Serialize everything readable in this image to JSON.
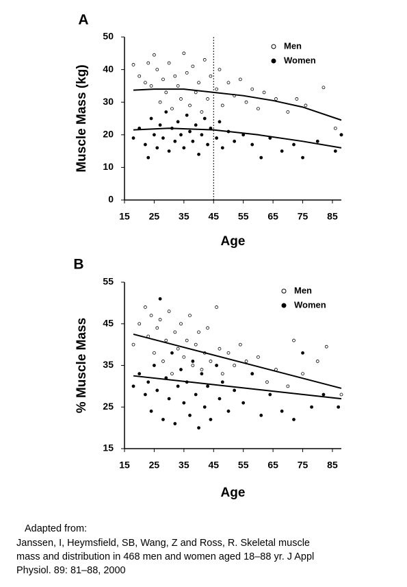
{
  "chart_data": [
    {
      "type": "scatter",
      "panel": "A",
      "xlabel": "Age",
      "ylabel": "Muscle Mass (kg)",
      "xlim": [
        15,
        88
      ],
      "ylim": [
        0,
        50
      ],
      "xticks": [
        15,
        25,
        35,
        45,
        55,
        65,
        75,
        85
      ],
      "yticks": [
        0,
        10,
        20,
        30,
        40,
        50
      ],
      "vline": 45,
      "series": [
        {
          "name": "Men",
          "marker": "open",
          "color": "#000000",
          "x": [
            18,
            20,
            22,
            23,
            24,
            25,
            26,
            27,
            28,
            29,
            30,
            31,
            32,
            33,
            34,
            35,
            36,
            37,
            38,
            39,
            40,
            41,
            42,
            43,
            44,
            46,
            47,
            48,
            50,
            52,
            54,
            56,
            58,
            60,
            62,
            66,
            70,
            73,
            76,
            82,
            86,
            88
          ],
          "values": [
            41.5,
            38,
            36,
            42,
            35,
            44.5,
            40,
            30,
            37,
            33,
            42,
            28,
            38,
            35,
            31,
            45,
            39,
            29,
            41,
            33,
            36,
            27,
            43,
            31,
            38,
            34,
            40,
            29,
            36,
            32,
            37,
            30,
            34,
            28,
            33,
            31,
            27,
            31,
            29,
            34.5,
            22,
            20
          ]
        },
        {
          "name": "Women",
          "marker": "filled",
          "color": "#000000",
          "x": [
            18,
            20,
            22,
            23,
            24,
            25,
            26,
            27,
            28,
            29,
            30,
            31,
            32,
            33,
            34,
            35,
            36,
            37,
            38,
            39,
            40,
            41,
            42,
            43,
            44,
            46,
            47,
            48,
            50,
            52,
            55,
            58,
            61,
            64,
            68,
            72,
            75,
            80,
            86,
            88
          ],
          "values": [
            19,
            22,
            17,
            13,
            25,
            20,
            16,
            23,
            19,
            27,
            15,
            22,
            18,
            24,
            20,
            16,
            26,
            21,
            18,
            23,
            14,
            20,
            25,
            17,
            22,
            19,
            24,
            16,
            21,
            18,
            20,
            17,
            13,
            19,
            15,
            17,
            13,
            18,
            15,
            20
          ]
        }
      ],
      "fits": [
        {
          "x": [
            18,
            25,
            35,
            45,
            55,
            65,
            75,
            88
          ],
          "values": [
            33.7,
            34,
            34,
            33,
            32,
            30.5,
            28.5,
            24.5
          ]
        },
        {
          "x": [
            18,
            30,
            45,
            60,
            75,
            88
          ],
          "values": [
            21.5,
            22,
            21.5,
            20,
            18,
            16
          ]
        }
      ]
    },
    {
      "type": "scatter",
      "panel": "B",
      "xlabel": "Age",
      "ylabel": "% Muscle Mass",
      "xlim": [
        15,
        88
      ],
      "ylim": [
        15,
        55
      ],
      "xticks": [
        15,
        25,
        35,
        45,
        55,
        65,
        75,
        85
      ],
      "yticks": [
        15,
        25,
        35,
        45,
        55
      ],
      "series": [
        {
          "name": "Men",
          "marker": "open",
          "color": "#000000",
          "x": [
            18,
            20,
            22,
            23,
            24,
            25,
            26,
            27,
            28,
            29,
            30,
            31,
            32,
            33,
            34,
            35,
            36,
            37,
            38,
            39,
            40,
            41,
            42,
            43,
            44,
            46,
            47,
            48,
            50,
            52,
            54,
            56,
            58,
            60,
            63,
            66,
            70,
            72,
            75,
            80,
            83,
            88
          ],
          "values": [
            40,
            45,
            49,
            42,
            47,
            38,
            44,
            46,
            36,
            41,
            48,
            33,
            43,
            39,
            45,
            37,
            41,
            47,
            35,
            40,
            43,
            34,
            38,
            44,
            36,
            49,
            39,
            33,
            38,
            35,
            40,
            36,
            33,
            37,
            31,
            34,
            30,
            41,
            33,
            36,
            39.5,
            28
          ]
        },
        {
          "name": "Women",
          "marker": "filled",
          "color": "#000000",
          "x": [
            18,
            20,
            22,
            23,
            24,
            25,
            26,
            27,
            28,
            29,
            30,
            31,
            32,
            33,
            34,
            35,
            36,
            37,
            38,
            39,
            40,
            41,
            42,
            43,
            44,
            46,
            47,
            48,
            50,
            52,
            55,
            58,
            61,
            64,
            68,
            72,
            75,
            78,
            82,
            87
          ],
          "values": [
            30,
            33,
            28,
            31,
            24,
            35,
            29,
            51,
            22,
            32,
            27,
            38,
            21,
            30,
            34,
            26,
            31,
            23,
            36,
            28,
            20,
            33,
            25,
            30,
            22,
            35,
            27,
            31,
            24,
            29,
            26,
            33,
            23,
            28,
            24,
            22,
            38,
            25,
            28,
            25
          ]
        }
      ],
      "fits": [
        {
          "x": [
            18,
            88
          ],
          "values": [
            42.5,
            29.5
          ]
        },
        {
          "x": [
            18,
            88
          ],
          "values": [
            32.5,
            27
          ]
        }
      ]
    }
  ],
  "caption": [
    "Adapted from:",
    "Janssen, I, Heymsfield, SB, Wang, Z and Ross, R. Skeletal muscle",
    "mass and distribution in 468 men and women aged 18–88 yr. J Appl",
    "Physiol. 89: 81–88, 2000"
  ]
}
